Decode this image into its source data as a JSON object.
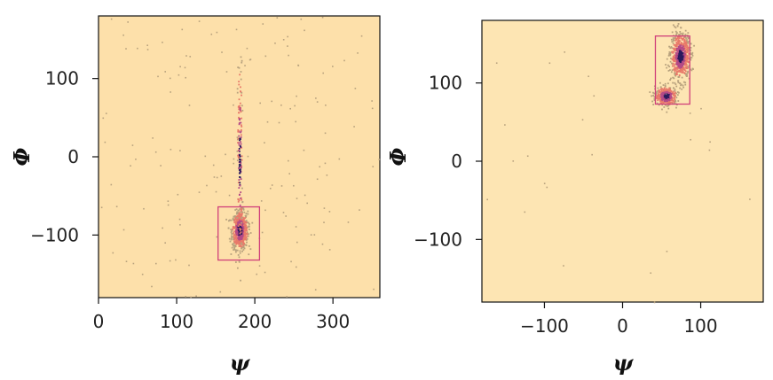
{
  "chart_data": [
    {
      "type": "scatter",
      "title": "",
      "xlabel": "ψ",
      "ylabel": "Φ",
      "xlim": [
        0,
        360
      ],
      "ylim": [
        -180,
        180
      ],
      "xticks": [
        0,
        100,
        200,
        300
      ],
      "yticks": [
        -100,
        0,
        100
      ],
      "xtick_labels": [
        "0",
        "100",
        "200",
        "300"
      ],
      "ytick_labels": [
        "−100",
        "0",
        "100"
      ],
      "grid": false,
      "colors": {
        "background": "#fde0aa",
        "sparse_point": "#b8a27e",
        "density_low": "#e87a6a",
        "density_mid": "#b44a86",
        "density_high": "#2b1a5e",
        "box": "#d0407a"
      },
      "clusters": [
        {
          "center": [
            180,
            -93
          ],
          "spread": [
            5,
            12
          ],
          "count": 700
        },
        {
          "center": [
            180,
            0
          ],
          "spread": [
            1.5,
            60
          ],
          "count": 160
        }
      ],
      "background_scatter_count": 160,
      "highlight_box": {
        "x0": 153,
        "x1": 206,
        "y0": -132,
        "y1": -64
      }
    },
    {
      "type": "scatter",
      "title": "",
      "xlabel": "ψ",
      "ylabel": "Φ",
      "xlim": [
        -180,
        180
      ],
      "ylim": [
        -180,
        180
      ],
      "xticks": [
        -100,
        0,
        100
      ],
      "yticks": [
        -100,
        0,
        100
      ],
      "xtick_labels": [
        "−100",
        "0",
        "100"
      ],
      "ytick_labels": [
        "−100",
        "0",
        "100"
      ],
      "grid": false,
      "colors": {
        "background": "#fde5b3",
        "sparse_point": "#b8a27e",
        "density_low": "#e87a6a",
        "density_mid": "#b44a86",
        "density_high": "#2b1a5e",
        "box": "#d0407a"
      },
      "clusters": [
        {
          "center": [
            73,
            135
          ],
          "spread": [
            6,
            14
          ],
          "count": 700
        },
        {
          "center": [
            55,
            84
          ],
          "spread": [
            7,
            6
          ],
          "count": 350
        }
      ],
      "background_scatter_count": 25,
      "highlight_box": {
        "x0": 42,
        "x1": 86,
        "y0": 73,
        "y1": 160
      }
    }
  ]
}
